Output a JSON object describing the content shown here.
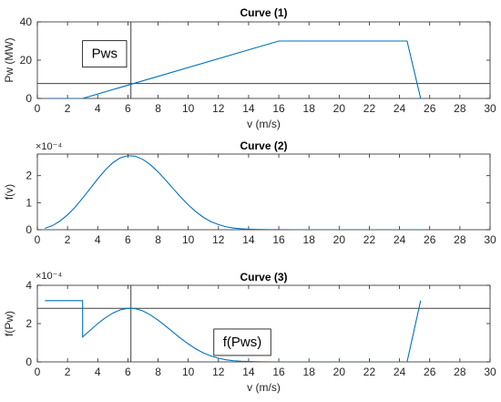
{
  "chart_data": [
    {
      "type": "line",
      "title": "Curve (1)",
      "xlabel": "v (m/s)",
      "ylabel": "Pw (MW)",
      "xlim": [
        0,
        30
      ],
      "ylim": [
        0,
        40
      ],
      "xticks": [
        0,
        2,
        4,
        6,
        8,
        10,
        12,
        14,
        16,
        18,
        20,
        22,
        24,
        26,
        28,
        30
      ],
      "yticks": [
        0,
        20,
        40
      ],
      "grid": false,
      "series": [
        {
          "color": "#0072bd",
          "x": [
            0.5,
            3,
            16,
            24.5,
            25.4
          ],
          "y": [
            0,
            0,
            30,
            30,
            0
          ]
        }
      ],
      "hline": {
        "y": 7.8,
        "color": "#404040"
      },
      "vline": {
        "x": 6.2,
        "color": "#404040"
      },
      "annotation": {
        "text": "Pws",
        "x": 3.6,
        "y": 23.5
      }
    },
    {
      "type": "line",
      "title": "Curve (2)",
      "xlabel": "",
      "ylabel": "f(v)",
      "exponent": "×10⁻⁴",
      "xlim": [
        0,
        30
      ],
      "ylim": [
        0,
        2.8
      ],
      "xticks": [
        0,
        2,
        4,
        6,
        8,
        10,
        12,
        14,
        16,
        18,
        20,
        22,
        24,
        26,
        28,
        30
      ],
      "yticks": [
        0,
        1,
        2
      ],
      "grid": false,
      "series": [
        {
          "color": "#0072bd",
          "x": [
            0.5,
            1,
            1.5,
            2,
            2.5,
            3,
            3.5,
            4,
            4.5,
            5,
            5.5,
            6,
            6.5,
            7,
            7.5,
            8,
            8.5,
            9,
            9.5,
            10,
            10.5,
            11,
            11.5,
            12,
            12.5,
            13,
            13.5,
            14,
            14.5,
            15,
            15.5,
            16,
            17,
            18,
            19,
            20,
            21,
            22,
            23,
            24,
            25,
            25.4
          ],
          "y": [
            0.05,
            0.15,
            0.32,
            0.55,
            0.83,
            1.17,
            1.52,
            1.88,
            2.21,
            2.48,
            2.66,
            2.74,
            2.72,
            2.6,
            2.4,
            2.14,
            1.84,
            1.52,
            1.21,
            0.92,
            0.67,
            0.46,
            0.3,
            0.19,
            0.11,
            0.06,
            0.035,
            0.02,
            0.01,
            0.005,
            0.002,
            0.001,
            0,
            0,
            0,
            0,
            0,
            0,
            0,
            0,
            0,
            0
          ]
        }
      ]
    },
    {
      "type": "line",
      "title": "Curve (3)",
      "xlabel": "v (m/s)",
      "ylabel": "f(Pw)",
      "exponent": "×10⁻⁴",
      "xlim": [
        0,
        30
      ],
      "ylim": [
        0,
        4
      ],
      "xticks": [
        0,
        2,
        4,
        6,
        8,
        10,
        12,
        14,
        16,
        18,
        20,
        22,
        24,
        26,
        28,
        30
      ],
      "yticks": [
        0,
        2,
        4
      ],
      "grid": false,
      "series": [
        {
          "color": "#0072bd",
          "x": [
            0.5,
            3,
            3,
            3.5,
            4,
            4.5,
            5,
            5.5,
            6,
            6.5,
            7,
            7.5,
            8,
            8.5,
            9,
            9.5,
            10,
            10.5,
            11,
            11.5,
            12,
            12.5,
            13,
            13.5,
            14,
            14.5,
            15,
            16,
            18,
            20,
            22,
            24,
            24.5,
            25.4
          ],
          "y": [
            3.2,
            3.2,
            1.3,
            1.65,
            2.0,
            2.3,
            2.55,
            2.72,
            2.8,
            2.78,
            2.66,
            2.45,
            2.18,
            1.87,
            1.55,
            1.23,
            0.94,
            0.68,
            0.47,
            0.31,
            0.19,
            0.11,
            0.06,
            0.035,
            0.02,
            0.01,
            0.005,
            0,
            0,
            0,
            0,
            0,
            0,
            3.2
          ]
        }
      ],
      "hline": {
        "y": 2.8,
        "color": "#404040"
      },
      "vline": {
        "x": 6.2,
        "color": "#404040"
      },
      "annotation": {
        "text": "f(Pws)",
        "x": 12.3,
        "y": 1.05
      }
    }
  ]
}
